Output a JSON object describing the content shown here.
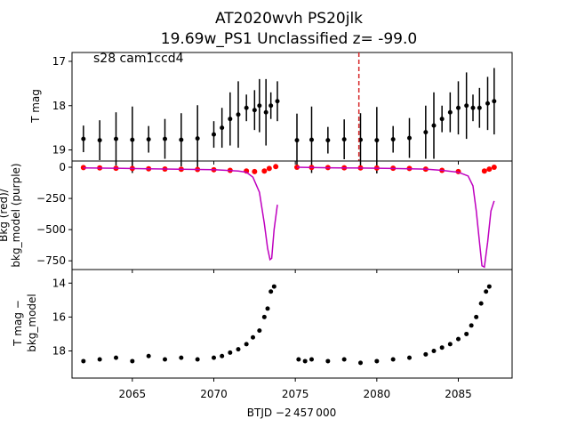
{
  "figure": {
    "title_line1": "AT2020wvh  PS20jlk",
    "title_line2": "19.69w_PS1 Unclassified z= -99.0",
    "xlabel": "BTJD −2 457 000",
    "xticks": [
      "2065",
      "2070",
      "2075",
      "2080",
      "2085"
    ]
  },
  "chart_data": [
    {
      "type": "scatter",
      "panel": "top",
      "annotation": "s28 cam1ccd4",
      "ylabel": "T mag",
      "yticks": [
        "17",
        "18",
        "19"
      ],
      "ylim": [
        19.25,
        16.8
      ],
      "xlim": [
        2061.3,
        2088.3
      ],
      "inverted_y": true,
      "vertical_line": {
        "x": 2078.9,
        "style": "dashed",
        "color": "#d62728"
      },
      "series": [
        {
          "color": "#000000",
          "marker": "dot with errorbars",
          "x": [
            2062.0,
            2063.0,
            2064.0,
            2065.0,
            2066.0,
            2067.0,
            2068.0,
            2069.0,
            2070.0,
            2070.5,
            2071.0,
            2071.5,
            2072.0,
            2072.5,
            2072.8,
            2073.2,
            2073.5,
            2073.9,
            2075.1,
            2076.0,
            2077.0,
            2078.0,
            2079.0,
            2080.0,
            2081.0,
            2082.0,
            2083.0,
            2083.5,
            2084.0,
            2084.5,
            2085.0,
            2085.5,
            2085.9,
            2086.3,
            2086.8,
            2087.2
          ],
          "y": [
            18.75,
            18.78,
            18.75,
            18.77,
            18.76,
            18.75,
            18.77,
            18.74,
            18.65,
            18.5,
            18.3,
            18.2,
            18.05,
            18.1,
            18.0,
            18.15,
            18.0,
            17.9,
            18.78,
            18.77,
            18.78,
            18.76,
            18.77,
            18.78,
            18.76,
            18.73,
            18.6,
            18.45,
            18.3,
            18.15,
            18.05,
            18.0,
            18.05,
            18.05,
            17.95,
            17.9
          ]
        }
      ]
    },
    {
      "type": "scatter",
      "panel": "middle",
      "ylabel_line1": "Bkg (red)/",
      "ylabel_line2": "bkg_model (purple)",
      "yticks": [
        "0",
        "−250",
        "−500",
        "−750"
      ],
      "ylim": [
        -820,
        50
      ],
      "series": [
        {
          "name": "Bkg",
          "color": "#ff0000",
          "x": [
            2062.0,
            2063.0,
            2064.0,
            2065.0,
            2066.0,
            2067.0,
            2068.0,
            2069.0,
            2070.0,
            2071.0,
            2072.0,
            2072.5,
            2073.1,
            2073.4,
            2073.8,
            2075.1,
            2076.0,
            2077.0,
            2078.0,
            2079.0,
            2080.0,
            2081.0,
            2082.0,
            2083.0,
            2084.0,
            2085.0,
            2086.6,
            2086.9,
            2087.2
          ],
          "y": [
            -3,
            -5,
            -8,
            -10,
            -12,
            -14,
            -16,
            -18,
            -20,
            -25,
            -30,
            -35,
            -30,
            -10,
            5,
            0,
            -2,
            -3,
            -4,
            -5,
            -6,
            -8,
            -10,
            -15,
            -25,
            -35,
            -30,
            -15,
            0
          ]
        },
        {
          "name": "bkg_model",
          "color": "#bf00bf",
          "x": [
            2062.0,
            2064.0,
            2066.0,
            2068.0,
            2070.0,
            2071.5,
            2072.0,
            2072.4,
            2072.8,
            2073.1,
            2073.3,
            2073.45,
            2073.55,
            2073.7,
            2073.9,
            2075.1,
            2077.0,
            2079.0,
            2081.0,
            2083.0,
            2084.0,
            2085.0,
            2085.6,
            2085.9,
            2086.1,
            2086.3,
            2086.45,
            2086.6,
            2086.8,
            2087.0,
            2087.2
          ],
          "y": [
            -5,
            -8,
            -12,
            -16,
            -20,
            -30,
            -40,
            -80,
            -200,
            -450,
            -650,
            -740,
            -730,
            -500,
            -300,
            0,
            -4,
            -6,
            -10,
            -15,
            -25,
            -40,
            -70,
            -150,
            -350,
            -600,
            -790,
            -800,
            -600,
            -350,
            -270
          ]
        }
      ]
    },
    {
      "type": "scatter",
      "panel": "bottom",
      "ylabel_line1": "T mag −",
      "ylabel_line2": "bkg_model",
      "yticks": [
        "14",
        "16",
        "18"
      ],
      "ylim": [
        19.6,
        13.2
      ],
      "inverted_y": true,
      "series": [
        {
          "color": "#000000",
          "x": [
            2062.0,
            2063.0,
            2064.0,
            2065.0,
            2066.0,
            2067.0,
            2068.0,
            2069.0,
            2070.0,
            2070.5,
            2071.0,
            2071.5,
            2072.0,
            2072.4,
            2072.8,
            2073.1,
            2073.3,
            2073.5,
            2073.7,
            2075.2,
            2075.6,
            2076.0,
            2077.0,
            2078.0,
            2079.0,
            2080.0,
            2081.0,
            2082.0,
            2083.0,
            2083.5,
            2084.0,
            2084.5,
            2085.0,
            2085.5,
            2085.8,
            2086.1,
            2086.4,
            2086.7,
            2086.9
          ],
          "y": [
            18.6,
            18.5,
            18.4,
            18.6,
            18.3,
            18.5,
            18.4,
            18.5,
            18.4,
            18.3,
            18.1,
            17.9,
            17.6,
            17.2,
            16.8,
            16.0,
            15.5,
            14.5,
            14.2,
            18.5,
            18.6,
            18.5,
            18.6,
            18.5,
            18.7,
            18.6,
            18.5,
            18.4,
            18.2,
            18.0,
            17.8,
            17.6,
            17.3,
            17.0,
            16.5,
            16.0,
            15.2,
            14.5,
            14.2
          ]
        }
      ]
    }
  ]
}
